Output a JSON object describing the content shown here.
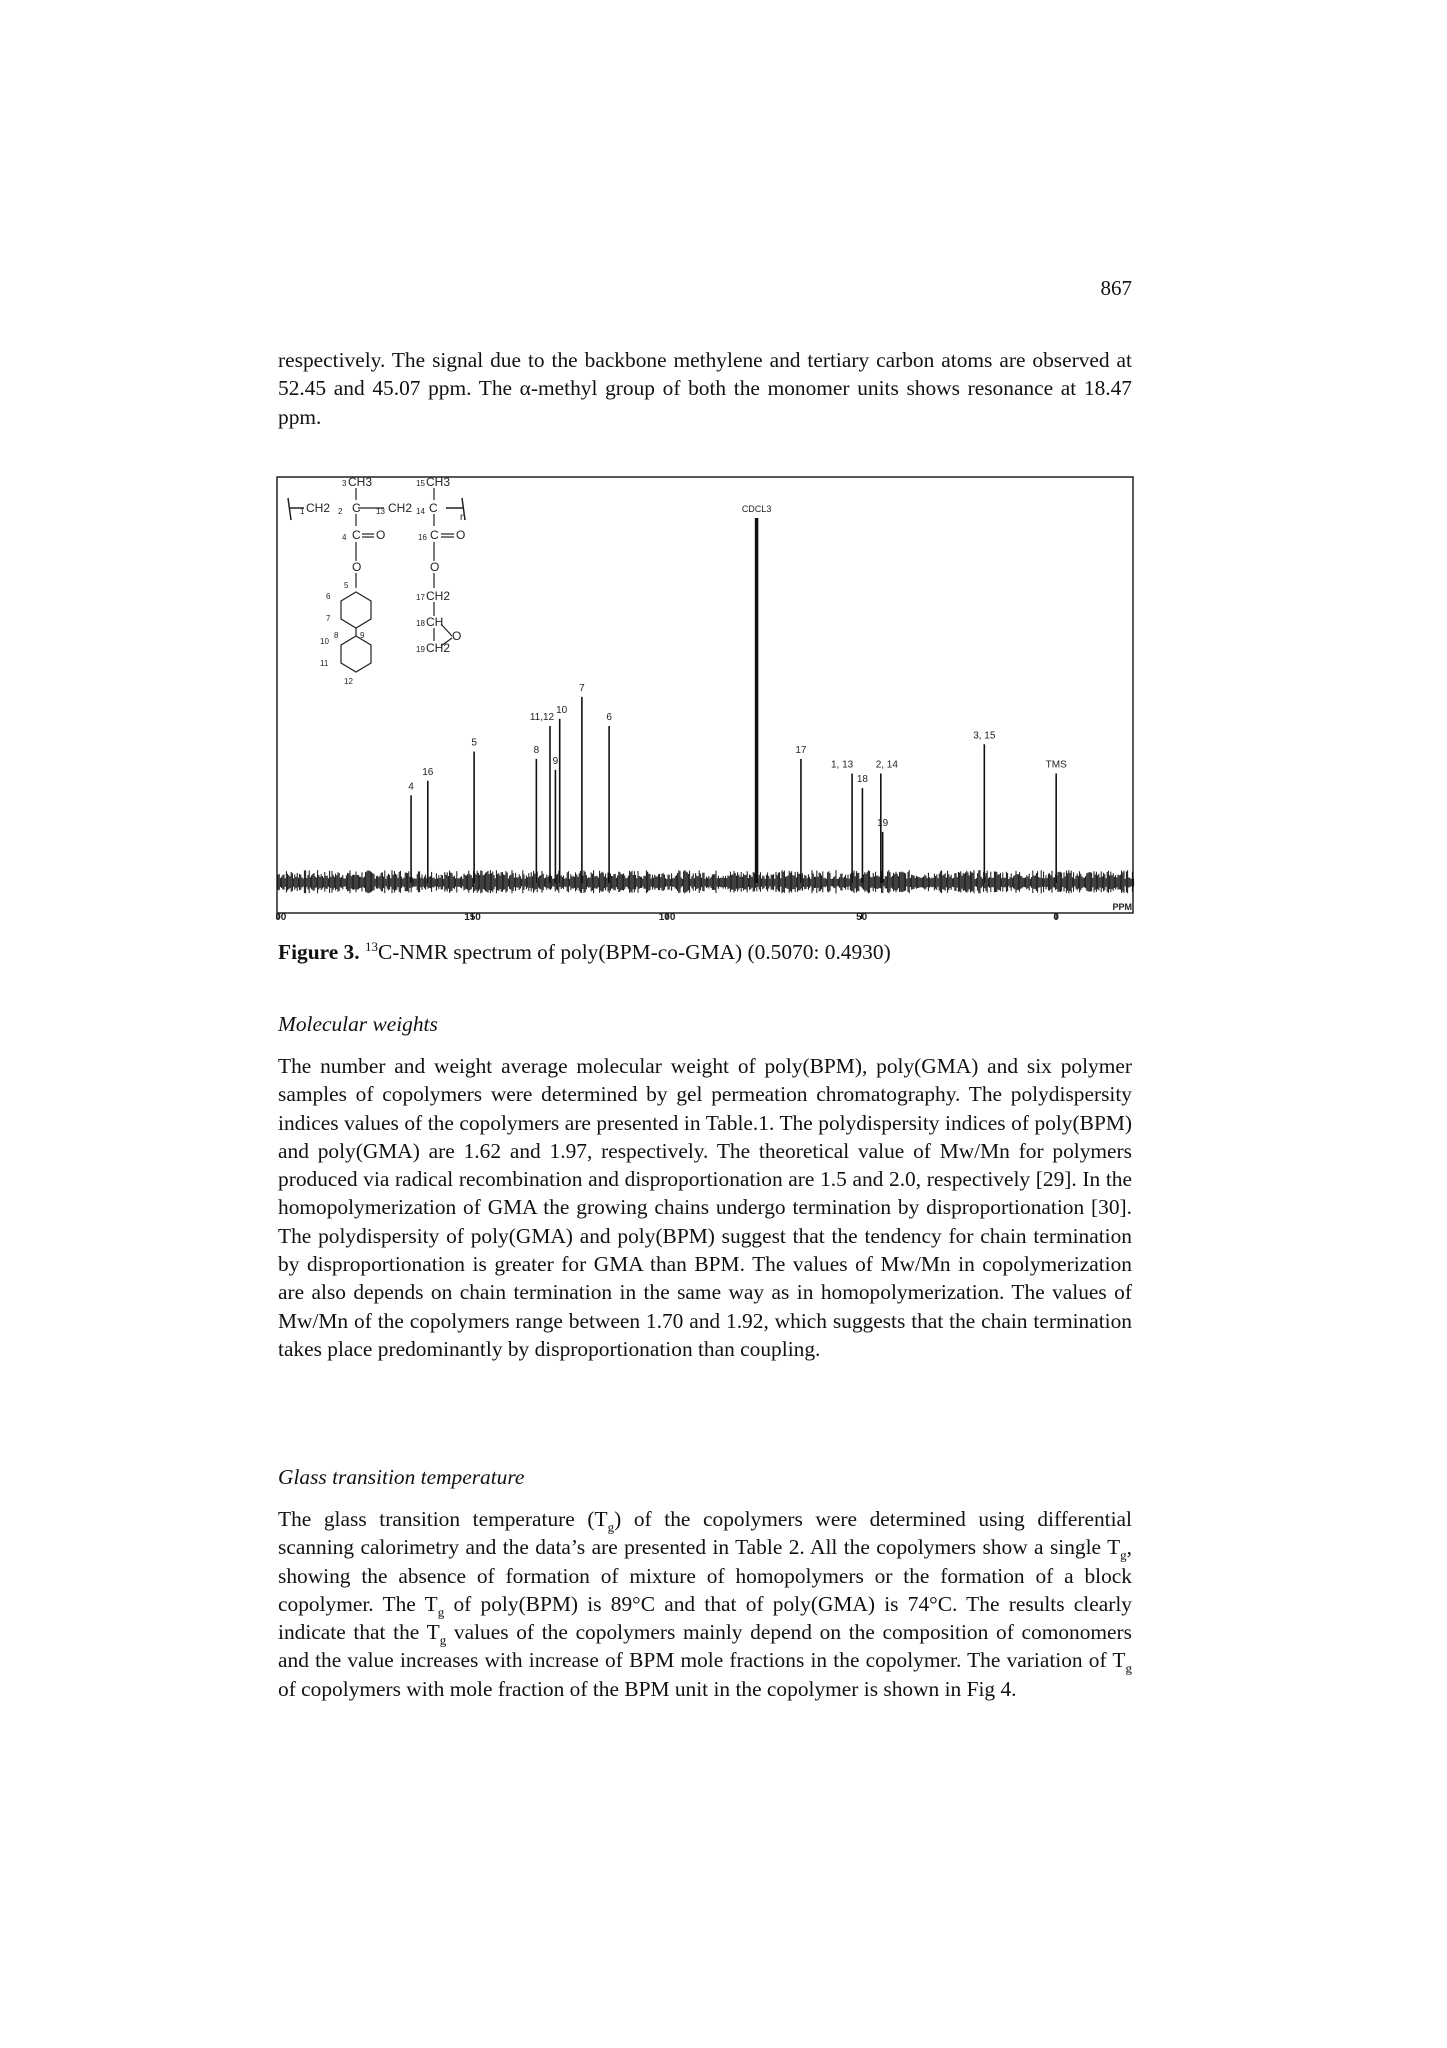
{
  "page_number": "867",
  "intro_paragraph": "respectively. The signal due to the backbone methylene and tertiary carbon atoms are observed at 52.45 and 45.07 ppm. The α-methyl group of both the monomer units shows resonance at 18.47 ppm.",
  "figure": {
    "caption_label": "Figure 3.",
    "caption_sup": "13",
    "caption_text": "C-NMR spectrum of poly(BPM-co-GMA) (0.5070: 0.4930)",
    "spectrum_chart": {
      "type": "line",
      "x_unit_label": "PPM",
      "x_ticks": [
        "200",
        "150",
        "100",
        "50",
        "0"
      ],
      "xlim": [
        200,
        -20
      ],
      "peaks": [
        {
          "label": "4",
          "ppm": 165.8,
          "height": 0.24
        },
        {
          "label": "16",
          "ppm": 161.5,
          "height": 0.28
        },
        {
          "label": "5",
          "ppm": 149.6,
          "height": 0.36
        },
        {
          "label": "8",
          "ppm": 133.6,
          "height": 0.34
        },
        {
          "label": "11,12",
          "ppm": 130.1,
          "height": 0.43
        },
        {
          "label": "9",
          "ppm": 128.7,
          "height": 0.31
        },
        {
          "label": "10",
          "ppm": 127.6,
          "height": 0.45
        },
        {
          "label": "7",
          "ppm": 121.9,
          "height": 0.51
        },
        {
          "label": "6",
          "ppm": 114.9,
          "height": 0.43
        },
        {
          "label": "CDCL3",
          "ppm": 77.0,
          "height": 1.0
        },
        {
          "label": "17",
          "ppm": 65.6,
          "height": 0.34
        },
        {
          "label": "1, 13",
          "ppm": 52.45,
          "height": 0.3
        },
        {
          "label": "18",
          "ppm": 49.8,
          "height": 0.26
        },
        {
          "label": "2, 14",
          "ppm": 45.07,
          "height": 0.3
        },
        {
          "label": "19",
          "ppm": 44.6,
          "height": 0.14
        },
        {
          "label": "3, 15",
          "ppm": 18.47,
          "height": 0.38
        },
        {
          "label": "TMS",
          "ppm": 0.0,
          "height": 0.3
        }
      ]
    },
    "structure": {
      "ch3_left": "CH3",
      "ch3_right": "CH3",
      "n_label": "n",
      "o_labels": [
        "O",
        "O",
        "O",
        "O",
        "O"
      ],
      "ch2_labels": [
        "CH2",
        "CH2",
        "CH2",
        "CH2"
      ],
      "c_labels": [
        "C",
        "C",
        "C",
        "C"
      ],
      "ch_label": "CH",
      "ch2_epoxide": "CH2",
      "numbers": [
        "1",
        "2",
        "3",
        "4",
        "5",
        "6",
        "7",
        "8",
        "9",
        "10",
        "11",
        "12",
        "13",
        "14",
        "15",
        "16",
        "17",
        "18",
        "19"
      ]
    }
  },
  "section_molecular_weights": {
    "heading": "Molecular weights",
    "text": "The number and weight average molecular weight of poly(BPM), poly(GMA) and six polymer samples of copolymers were determined by gel permeation chromatography. The polydispersity indices values of the copolymers are presented in Table.1. The polydispersity indices of poly(BPM) and poly(GMA) are 1.62 and 1.97, respectively. The theoretical value of Mw/Mn for polymers produced via radical recombination and disproportionation are 1.5 and 2.0, respectively [29]. In the homopolymerization of GMA the growing chains undergo termination by disproportionation [30]. The polydispersity of poly(GMA) and poly(BPM) suggest that the tendency for chain termination by disproportionation is greater for GMA than BPM. The values of Mw/Mn in copolymerization are also depends on chain termination in the same way as in homopolymerization. The values of Mw/Mn of the copolymers range between 1.70 and 1.92, which suggests that the chain termination takes place predominantly by disproportionation than coupling."
  },
  "section_glass_transition": {
    "heading": "Glass transition temperature",
    "segments": [
      "The glass transition temperature (T",
      "g",
      ") of the copolymers were determined using differential scanning calorimetry and the data’s are presented in Table 2. All the copolymers show a single T",
      "g",
      ", showing the absence of formation of mixture of homopolymers or the formation of a block copolymer. The T",
      "g",
      " of poly(BPM) is 89°C and that of poly(GMA) is 74°C. The results clearly indicate that the T",
      "g",
      " values of the copolymers mainly depend on the composition of comonomers and the value increases with increase of BPM mole fractions in the copolymer. The variation of T",
      "g",
      " of copolymers with mole fraction of the BPM unit in the copolymer is shown in Fig 4."
    ]
  }
}
